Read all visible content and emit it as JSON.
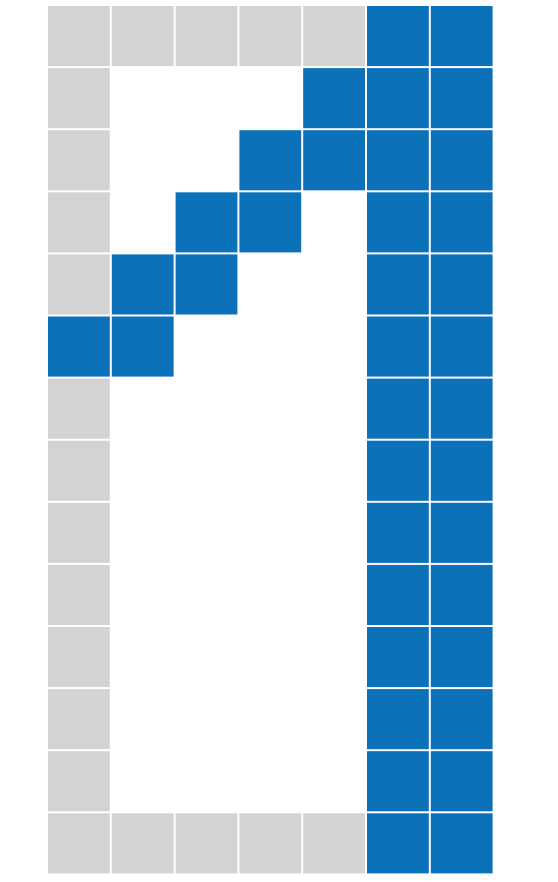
{
  "grid": {
    "rows": [
      [
        1,
        1,
        1,
        1,
        1,
        2,
        2
      ],
      [
        1,
        0,
        0,
        0,
        2,
        2,
        2
      ],
      [
        1,
        0,
        0,
        2,
        2,
        2,
        2
      ],
      [
        1,
        0,
        2,
        2,
        0,
        2,
        2
      ],
      [
        1,
        2,
        2,
        0,
        0,
        2,
        2
      ],
      [
        2,
        2,
        0,
        0,
        0,
        2,
        2
      ],
      [
        1,
        0,
        0,
        0,
        0,
        2,
        2
      ],
      [
        1,
        0,
        0,
        0,
        0,
        2,
        2
      ],
      [
        1,
        0,
        0,
        0,
        0,
        2,
        2
      ],
      [
        1,
        0,
        0,
        0,
        0,
        2,
        2
      ],
      [
        1,
        0,
        0,
        0,
        0,
        2,
        2
      ],
      [
        1,
        0,
        0,
        0,
        0,
        2,
        2
      ],
      [
        1,
        0,
        0,
        0,
        0,
        2,
        2
      ],
      [
        1,
        1,
        1,
        1,
        1,
        2,
        2
      ]
    ],
    "colors": [
      "none",
      "#d3d3d3",
      "#0b71b9"
    ]
  }
}
